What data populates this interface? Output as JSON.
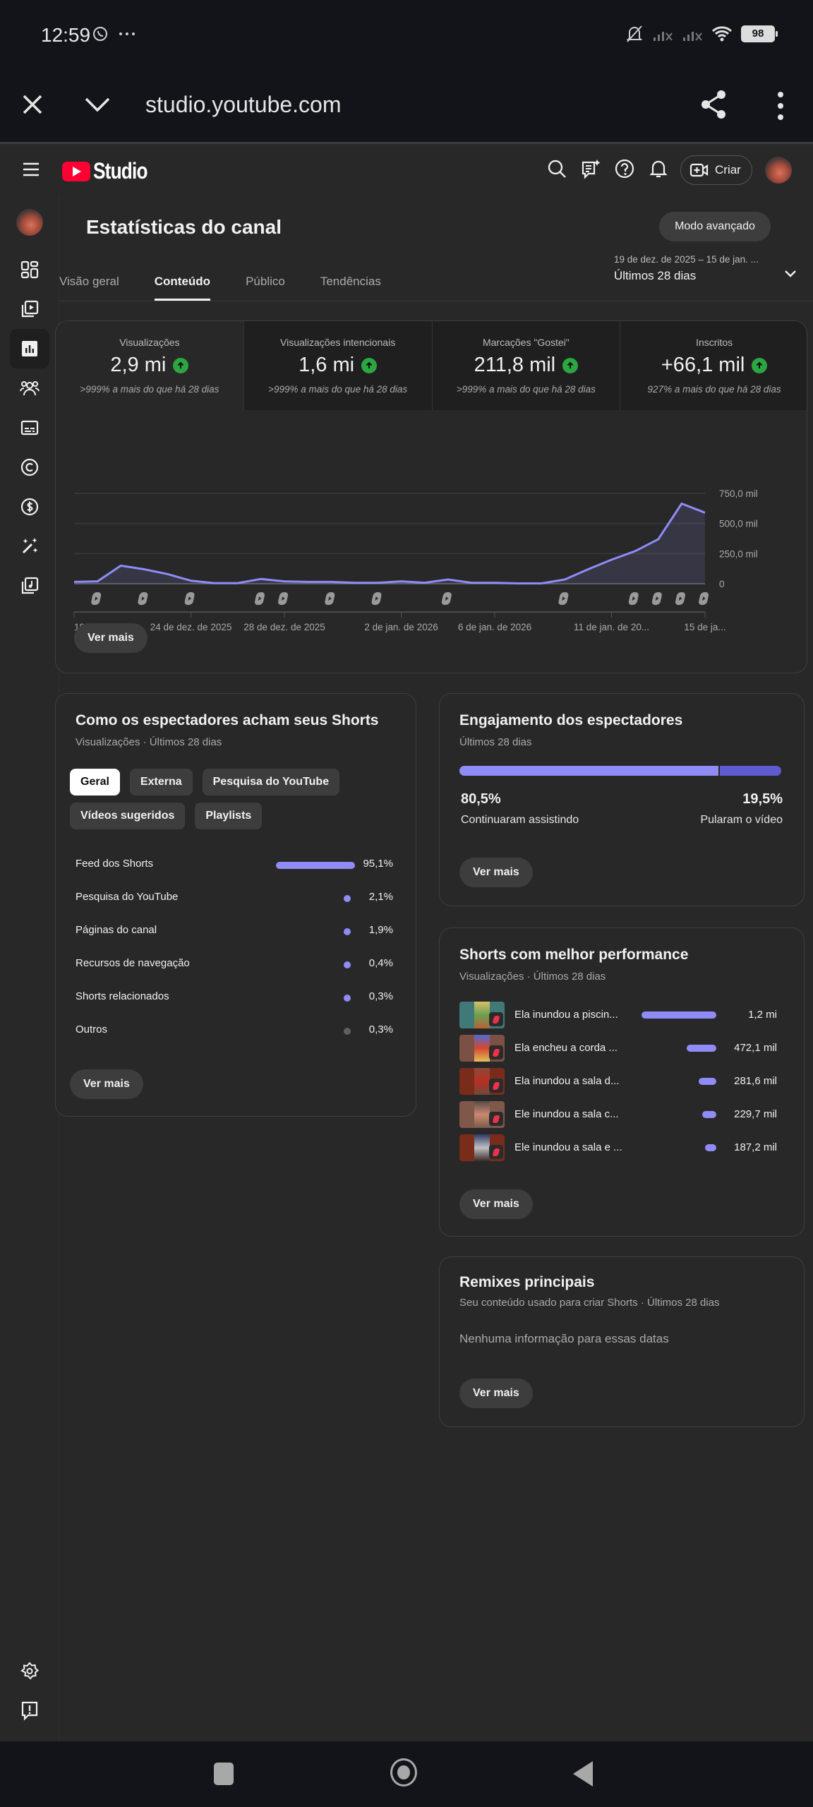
{
  "status_bar": {
    "time": "12:59",
    "battery": "98",
    "icons": [
      "whatsapp-icon",
      "more-dots-icon",
      "bell-off-icon",
      "signal-off-icon",
      "signal-off-icon",
      "wifi-icon",
      "battery-icon"
    ]
  },
  "browser": {
    "url": "studio.youtube.com",
    "icons": [
      "close-icon",
      "chevron-down-icon",
      "share-icon",
      "kebab-menu-icon"
    ]
  },
  "appbar": {
    "logo_text": "Studio",
    "create_label": "Criar",
    "icons": [
      "menu-icon",
      "search-icon",
      "feedback-sparkle-icon",
      "help-icon",
      "bell-icon",
      "create-video-icon",
      "avatar"
    ]
  },
  "sidebar": {
    "items": [
      {
        "name": "dashboard",
        "icon": "dashboard-grid-icon"
      },
      {
        "name": "content",
        "icon": "video-library-icon"
      },
      {
        "name": "analytics",
        "icon": "analytics-bar-icon",
        "active": true
      },
      {
        "name": "community",
        "icon": "community-people-icon"
      },
      {
        "name": "subtitles",
        "icon": "subtitles-icon"
      },
      {
        "name": "copyright",
        "icon": "copyright-icon"
      },
      {
        "name": "monetization",
        "icon": "dollar-icon"
      },
      {
        "name": "customization",
        "icon": "magic-wand-icon"
      },
      {
        "name": "audio-library",
        "icon": "audio-library-icon"
      }
    ],
    "bottom": [
      {
        "name": "settings",
        "icon": "gear-icon"
      },
      {
        "name": "send-feedback",
        "icon": "feedback-icon"
      }
    ]
  },
  "page": {
    "title": "Estatísticas do canal",
    "advanced_mode": "Modo avançado",
    "tabs": [
      {
        "label": "Visão geral",
        "active": false
      },
      {
        "label": "Conteúdo",
        "active": true
      },
      {
        "label": "Público",
        "active": false
      },
      {
        "label": "Tendências",
        "active": false
      }
    ],
    "date_range": "19 de dez. de 2025 – 15 de jan. ...",
    "period": "Últimos 28 dias"
  },
  "overview": {
    "stats": [
      {
        "label": "Visualizações",
        "value": "2,9 mi",
        "delta": ">999% a mais do que há 28 dias",
        "active": true
      },
      {
        "label": "Visualizações intencionais",
        "value": "1,6 mi",
        "delta": ">999% a mais do que há 28 dias"
      },
      {
        "label": "Marcações \"Gostei\"",
        "value": "211,8 mil",
        "delta": ">999% a mais do que há 28 dias"
      },
      {
        "label": "Inscritos",
        "value": "+66,1 mil",
        "delta": "927% a mais do que há 28 dias"
      }
    ],
    "see_more": "Ver mais"
  },
  "chart_data": {
    "type": "area",
    "title": "Visualizações",
    "xlabel": "",
    "ylabel": "",
    "ylim": [
      0,
      750000
    ],
    "y_ticks": [
      "750,0 mil",
      "500,0 mil",
      "250,0 mil",
      "0"
    ],
    "x_tick_labels": [
      "19 de dez....",
      "24 de dez. de 2025",
      "28 de dez. de 2025",
      "2 de jan. de 2026",
      "6 de jan. de 2026",
      "11 de jan. de 20...",
      "15 de ja..."
    ],
    "x_tick_indices": [
      0,
      5,
      9,
      14,
      18,
      23,
      27
    ],
    "x": [
      "19/12",
      "20/12",
      "21/12",
      "22/12",
      "23/12",
      "24/12",
      "25/12",
      "26/12",
      "27/12",
      "28/12",
      "29/12",
      "30/12",
      "31/12",
      "01/01",
      "02/01",
      "03/01",
      "04/01",
      "05/01",
      "06/01",
      "07/01",
      "08/01",
      "09/01",
      "10/01",
      "11/01",
      "12/01",
      "13/01",
      "14/01",
      "15/01"
    ],
    "values": [
      15000,
      20000,
      150000,
      120000,
      80000,
      25000,
      5000,
      5000,
      40000,
      20000,
      15000,
      15000,
      8000,
      8000,
      20000,
      8000,
      35000,
      8000,
      8000,
      3000,
      3000,
      35000,
      120000,
      200000,
      270000,
      370000,
      665000,
      590000
    ],
    "shorts_markers_at": [
      1,
      3,
      5,
      8,
      9,
      11,
      13,
      16,
      21,
      24,
      25,
      26,
      27
    ],
    "grid": true,
    "line_color": "#8f8cf7"
  },
  "discovery": {
    "title": "Como os espectadores acham seus Shorts",
    "subtitle": "Visualizações · Últimos 28 dias",
    "chips": [
      {
        "label": "Geral",
        "active": true
      },
      {
        "label": "Externa"
      },
      {
        "label": "Pesquisa do YouTube"
      },
      {
        "label": "Vídeos sugeridos"
      },
      {
        "label": "Playlists"
      }
    ],
    "sources": [
      {
        "label": "Feed dos Shorts",
        "pct": "95,1%",
        "value": 95.1
      },
      {
        "label": "Pesquisa do YouTube",
        "pct": "2,1%",
        "value": 2.1
      },
      {
        "label": "Páginas do canal",
        "pct": "1,9%",
        "value": 1.9
      },
      {
        "label": "Recursos de navegação",
        "pct": "0,4%",
        "value": 0.4
      },
      {
        "label": "Shorts relacionados",
        "pct": "0,3%",
        "value": 0.3
      },
      {
        "label": "Outros",
        "pct": "0,3%",
        "value": 0.3
      }
    ],
    "see_more": "Ver mais"
  },
  "engagement": {
    "title": "Engajamento dos espectadores",
    "subtitle": "Últimos 28 dias",
    "stayed_pct": "80,5%",
    "stayed_label": "Continuaram assistindo",
    "swiped_pct": "19,5%",
    "swiped_label": "Pularam o vídeo",
    "stayed_value": 80.5,
    "see_more": "Ver mais"
  },
  "top_shorts": {
    "title": "Shorts com melhor performance",
    "subtitle": "Visualizações · Últimos 28 dias",
    "items": [
      {
        "title": "Ela inundou a piscin...",
        "views": "1,2 mi",
        "bar": 106,
        "thumb_bg": "#3f7a78"
      },
      {
        "title": "Ela encheu a corda ...",
        "views": "472,1 mil",
        "bar": 42,
        "thumb_bg": "#7b5045"
      },
      {
        "title": "Ela inundou a sala d...",
        "views": "281,6 mil",
        "bar": 25,
        "thumb_bg": "#7a2c1a"
      },
      {
        "title": "Ele inundou a sala c...",
        "views": "229,7 mil",
        "bar": 20,
        "thumb_bg": "#80584a"
      },
      {
        "title": "Ele inundou a sala e ...",
        "views": "187,2 mil",
        "bar": 16,
        "thumb_bg": "#7a2c1a"
      }
    ],
    "see_more": "Ver mais"
  },
  "remixes": {
    "title": "Remixes principais",
    "subtitle": "Seu conteúdo usado para criar Shorts · Últimos 28 dias",
    "empty": "Nenhuma informação para essas datas",
    "see_more": "Ver mais"
  }
}
